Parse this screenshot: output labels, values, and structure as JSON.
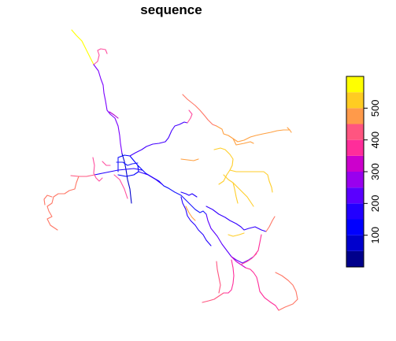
{
  "title": "sequence",
  "colors": {
    "line_scale": [
      "#00008b",
      "#0000ff",
      "#1a1aff",
      "#4400ff",
      "#7a00ff",
      "#b400cc",
      "#e0208e",
      "#ff4f7a",
      "#ff7766",
      "#ffa040",
      "#ffce2a",
      "#ffff00"
    ]
  },
  "legend": {
    "ticks": [
      {
        "value": 100,
        "label": "100"
      },
      {
        "value": 200,
        "label": "200"
      },
      {
        "value": 300,
        "label": "300"
      },
      {
        "value": 400,
        "label": "400"
      },
      {
        "value": 500,
        "label": "500"
      }
    ],
    "range": [
      0,
      600
    ],
    "bins": [
      {
        "from": 0,
        "to": 50,
        "color": "#00008b"
      },
      {
        "from": 50,
        "to": 100,
        "color": "#0000cd"
      },
      {
        "from": 100,
        "to": 150,
        "color": "#0000ff"
      },
      {
        "from": 150,
        "to": 200,
        "color": "#2200ff"
      },
      {
        "from": 200,
        "to": 250,
        "color": "#5a00ff"
      },
      {
        "from": 250,
        "to": 300,
        "color": "#9900ee"
      },
      {
        "from": 300,
        "to": 350,
        "color": "#cc00cc"
      },
      {
        "from": 350,
        "to": 400,
        "color": "#ff2d9a"
      },
      {
        "from": 400,
        "to": 450,
        "color": "#ff5580"
      },
      {
        "from": 450,
        "to": 500,
        "color": "#ff9a4a"
      },
      {
        "from": 500,
        "to": 550,
        "color": "#ffcc22"
      },
      {
        "from": 550,
        "to": 600,
        "color": "#ffff00"
      }
    ]
  }
}
